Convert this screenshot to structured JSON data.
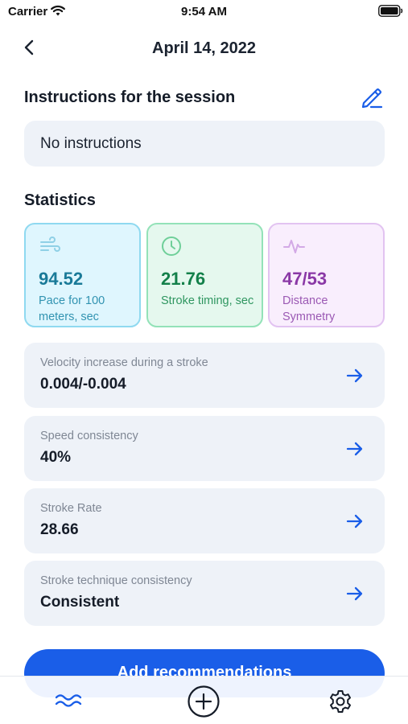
{
  "status_bar": {
    "carrier": "Carrier",
    "time": "9:54 AM",
    "icons": [
      "wifi-icon",
      "battery-icon"
    ]
  },
  "header": {
    "title": "April 14, 2022",
    "back_icon": "chevron-left-icon"
  },
  "instructions": {
    "section_title": "Instructions for the session",
    "edit_icon": "pencil-icon",
    "text": "No instructions"
  },
  "statistics": {
    "section_title": "Statistics",
    "cards": [
      {
        "icon": "wind-icon",
        "value": "94.52",
        "label": "Pace for 100 meters, sec",
        "accent": "#1a7a98"
      },
      {
        "icon": "clock-icon",
        "value": "21.76",
        "label": "Stroke timing, sec",
        "accent": "#13804a"
      },
      {
        "icon": "pulse-icon",
        "value": "47/53",
        "label": "Distance Symmetry",
        "accent": "#8a38a6"
      }
    ]
  },
  "metrics": [
    {
      "label": "Velocity increase during a stroke",
      "value": "0.004/-0.004"
    },
    {
      "label": "Speed consistency",
      "value": "40%"
    },
    {
      "label": "Stroke Rate",
      "value": "28.66"
    },
    {
      "label": "Stroke technique consistency",
      "value": "Consistent"
    }
  ],
  "primary_action": {
    "label": "Add recommendations",
    "color": "#1a5ee8"
  },
  "tab_bar": {
    "items": [
      "waves-icon",
      "plus-circle-icon",
      "gear-icon"
    ]
  }
}
